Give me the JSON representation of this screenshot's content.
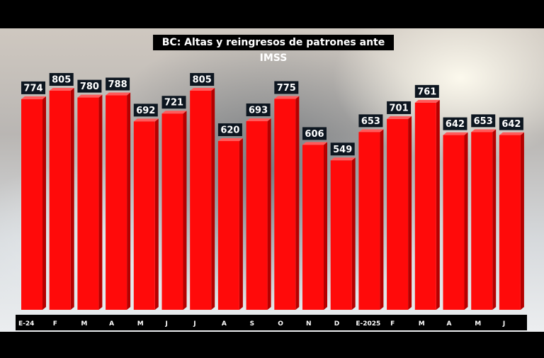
{
  "chart_data": {
    "type": "bar",
    "title": "BC: Altas y reingresos de patrones ante IMSS",
    "categories": [
      "E-24",
      "F",
      "M",
      "A",
      "M",
      "J",
      "J",
      "A",
      "S",
      "O",
      "N",
      "D",
      "E-2025",
      "F",
      "M",
      "A",
      "M",
      "J"
    ],
    "values": [
      774,
      805,
      780,
      788,
      692,
      721,
      805,
      620,
      693,
      775,
      606,
      549,
      653,
      701,
      761,
      642,
      653,
      642
    ],
    "xlabel": "",
    "ylabel": "",
    "ylim": [
      0,
      805
    ],
    "grid": false,
    "legend": "none",
    "colors": {
      "bar": "#ff0a0a",
      "bar_side": "#b50000",
      "bar_top": "#ff5a5a",
      "label_bg": "#0d1620",
      "label_text": "#ffffff"
    }
  }
}
